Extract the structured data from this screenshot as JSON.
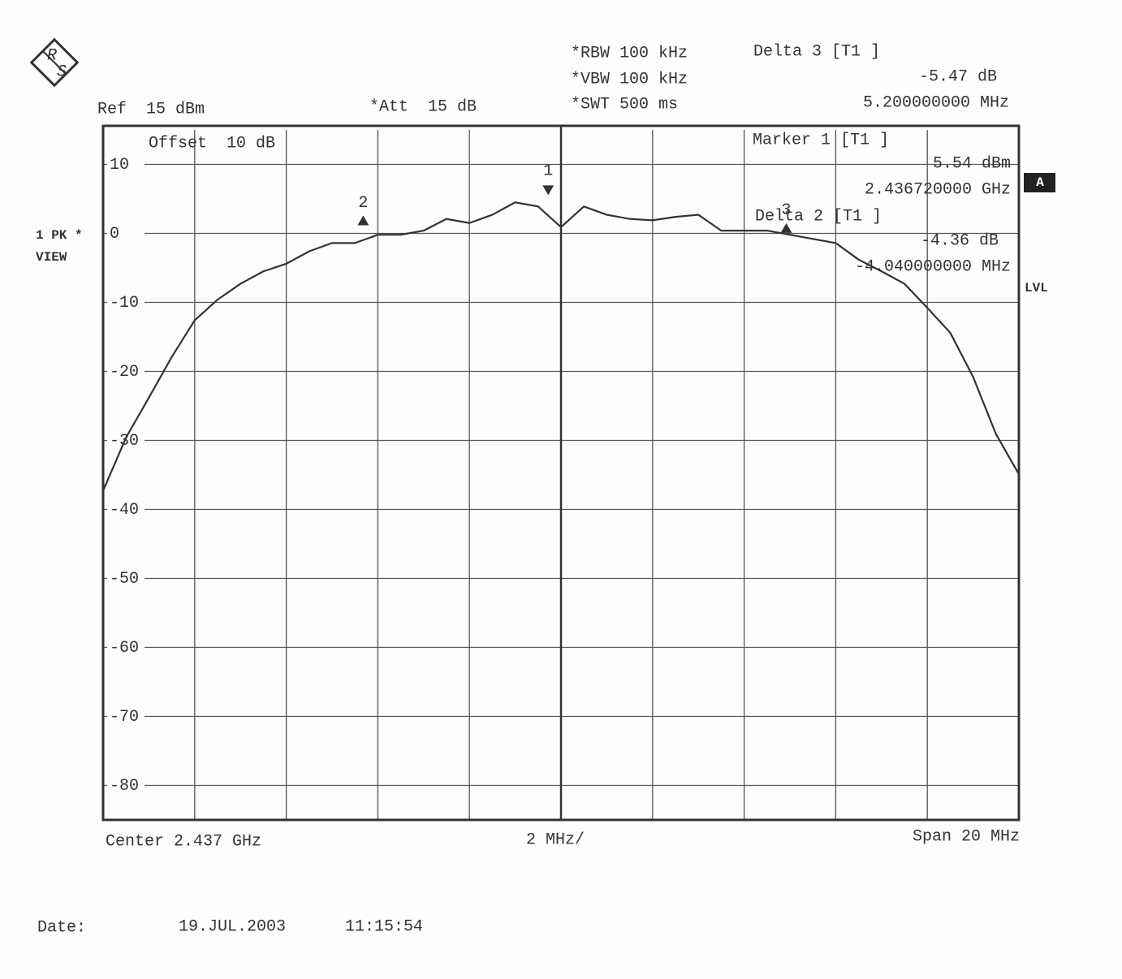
{
  "chart_data": {
    "type": "line",
    "x": [
      -10,
      -9.5,
      -9,
      -8.5,
      -8,
      -7.5,
      -7,
      -6.5,
      -6,
      -5.5,
      -5,
      -4.5,
      -4,
      -3.5,
      -3,
      -2.5,
      -2,
      -1.5,
      -1,
      -0.5,
      0,
      0.5,
      1,
      1.5,
      2,
      2.5,
      3,
      3.5,
      4,
      4.5,
      5,
      5.5,
      6,
      6.5,
      7,
      7.5,
      8,
      8.5,
      9,
      9.5,
      10
    ],
    "series": [
      {
        "color": "#333333",
        "values": [
          -37.3,
          -29.6,
          -23.8,
          -17.9,
          -12.6,
          -9.6,
          -7.3,
          -5.5,
          -4.4,
          -2.6,
          -1.4,
          -1.4,
          -0.2,
          -0.2,
          0.4,
          2.1,
          1.5,
          2.7,
          4.5,
          3.9,
          0.9,
          3.9,
          2.7,
          2.1,
          1.9,
          2.4,
          2.7,
          0.4,
          0.4,
          0.4,
          -0.2,
          -0.8,
          -1.4,
          -3.8,
          -5.5,
          -7.3,
          -10.8,
          -14.4,
          -20.8,
          -29.1,
          -34.9
        ]
      }
    ],
    "xlim": [
      -10,
      10
    ],
    "xticks": [
      -10,
      -8,
      -6,
      -4,
      -2,
      0,
      2,
      4,
      6,
      8,
      10
    ],
    "ylim": [
      -85,
      15
    ],
    "yticks": [
      10,
      0,
      -10,
      -20,
      -30,
      -40,
      -50,
      -60,
      -70,
      -80
    ],
    "grid": true,
    "markers": [
      {
        "label": "1",
        "x": -0.28,
        "y": 5.54
      },
      {
        "label": "2",
        "x": -4.32,
        "y": 1.18
      },
      {
        "label": "3",
        "x": 4.92,
        "y": 0.07
      }
    ],
    "logo": [
      "R",
      "S"
    ],
    "annotations": [
      "Ref  15 dBm",
      "*Att  15 dB",
      "*RBW 100 kHz",
      "*VBW 100 kHz",
      "*SWT 500 ms",
      "Delta 3 [T1 ]",
      "-5.47 dB",
      "5.200000000 MHz",
      "Offset  10 dB",
      "Marker 1 [T1 ]",
      "5.54 dBm",
      "2.436720000 GHz",
      "Delta 2 [T1 ]",
      "-4.36 dB",
      "-4.040000000 MHz",
      "1 PK *",
      "VIEW",
      "A",
      "LVL",
      "Center 2.437 GHz",
      "2 MHz/",
      "Span 20 MHz",
      "Date:",
      "19.JUL.2003",
      "11:15:54"
    ]
  }
}
